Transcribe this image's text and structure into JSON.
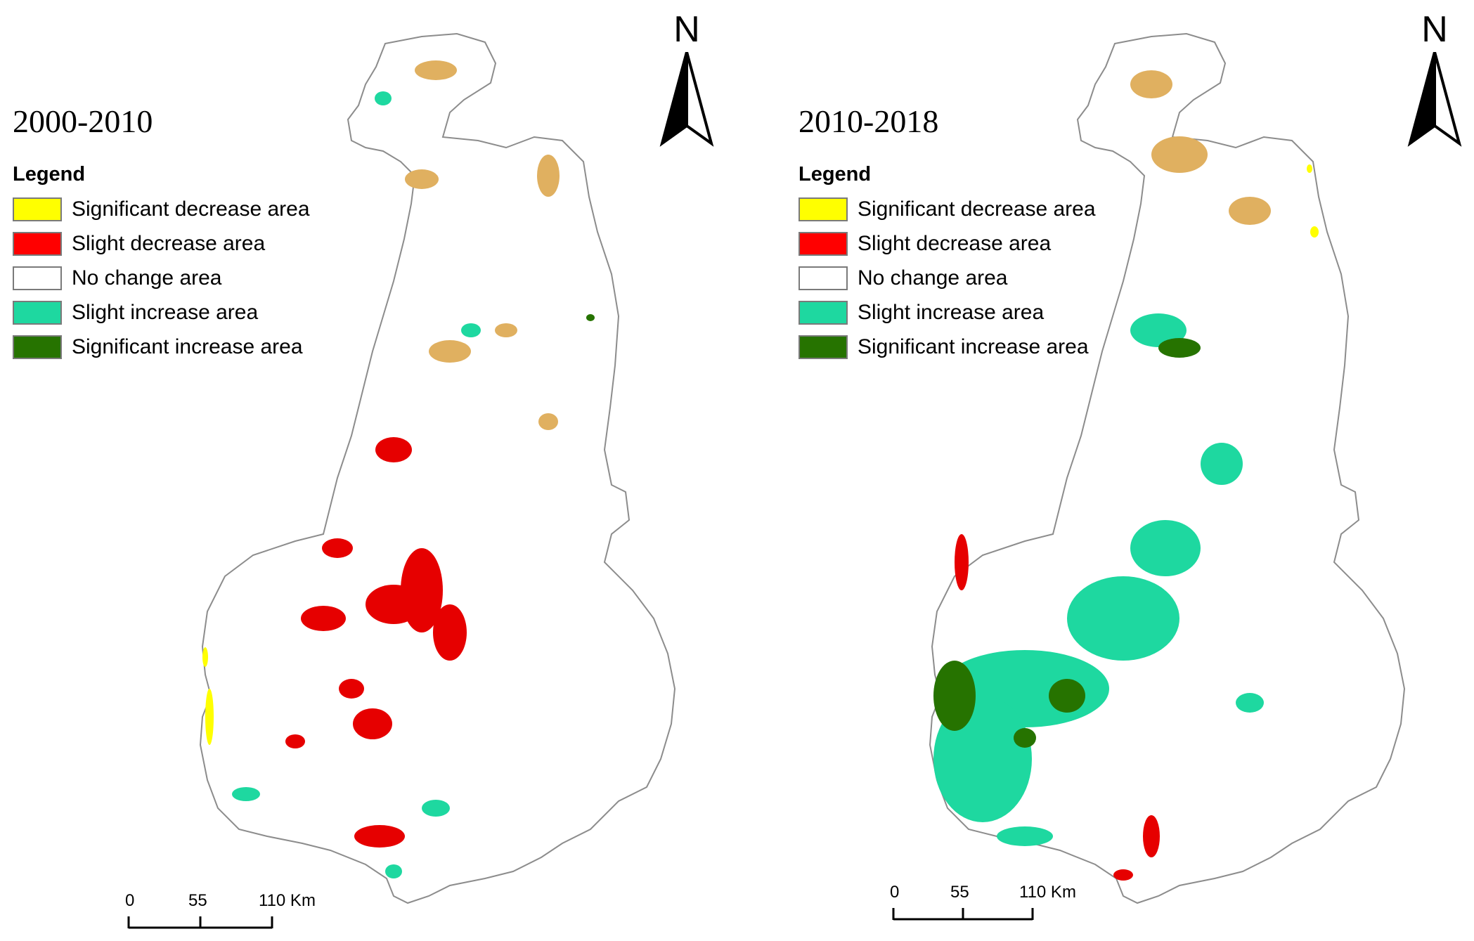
{
  "legend": {
    "title": "Legend",
    "items": [
      {
        "label": "Significant decrease area",
        "color": "#ffff00"
      },
      {
        "label": "Slight decrease area",
        "color": "#ff0000"
      },
      {
        "label": "No change area",
        "color": "#ffffff"
      },
      {
        "label": "Slight increase area",
        "color": "#1ed8a0"
      },
      {
        "label": "Significant increase area",
        "color": "#267300"
      }
    ]
  },
  "north": {
    "letter": "N"
  },
  "panels": [
    {
      "period": "2000-2010",
      "scale": {
        "ticks": [
          "0",
          "55",
          "110 Km"
        ]
      }
    },
    {
      "period": "2010-2018",
      "scale": {
        "ticks": [
          "0",
          "55",
          "110 Km"
        ]
      }
    }
  ]
}
